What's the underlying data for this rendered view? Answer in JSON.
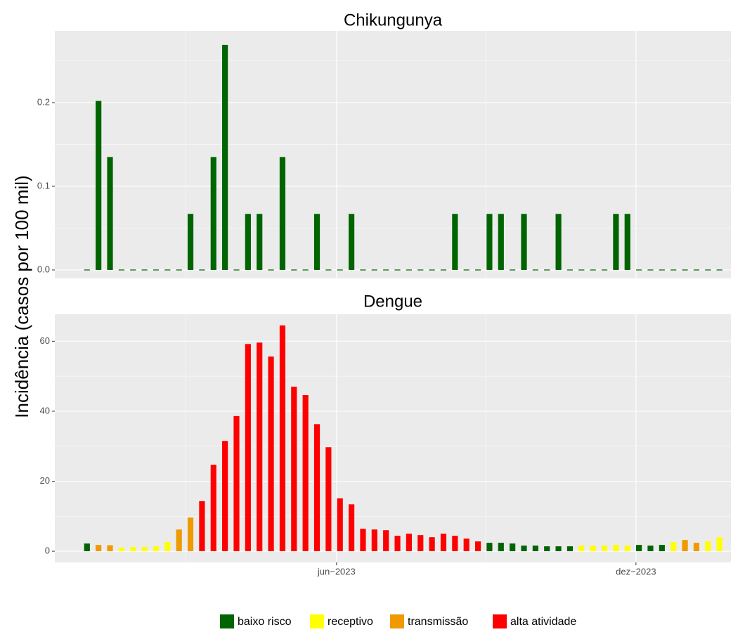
{
  "ylabel": "Incidência (casos por 100 mil)",
  "legend": [
    {
      "name": "baixo risco",
      "color": "#006400"
    },
    {
      "name": "receptivo",
      "color": "#FFFF00"
    },
    {
      "name": "transmissão",
      "color": "#EE9A00"
    },
    {
      "name": "alta atividade",
      "color": "#FF0000"
    }
  ],
  "chart_data": [
    {
      "type": "bar",
      "title": "Chikungunya",
      "x": [
        1,
        2,
        3,
        4,
        5,
        6,
        7,
        8,
        9,
        10,
        11,
        12,
        13,
        14,
        15,
        16,
        17,
        18,
        19,
        20,
        21,
        22,
        23,
        24,
        25,
        26,
        27,
        28,
        29,
        30,
        31,
        32,
        33,
        34,
        35,
        36,
        37,
        38,
        39,
        40,
        41,
        42,
        43,
        44,
        45,
        46,
        47,
        48,
        49,
        50,
        51,
        52,
        53,
        54,
        55,
        56
      ],
      "values": [
        0,
        0.202,
        0.135,
        0,
        0,
        0,
        0,
        0,
        0,
        0.067,
        0,
        0.135,
        0.269,
        0,
        0.067,
        0.067,
        0,
        0.135,
        0,
        0,
        0.067,
        0,
        0,
        0.067,
        0,
        0,
        0,
        0,
        0,
        0,
        0,
        0,
        0.067,
        0,
        0,
        0.067,
        0.067,
        0,
        0.067,
        0,
        0,
        0.067,
        0,
        0,
        0,
        0,
        0.067,
        0.067,
        0,
        0,
        0,
        0,
        0,
        0,
        0,
        0
      ],
      "levels": [
        0,
        0,
        0,
        0,
        0,
        0,
        0,
        0,
        0,
        0,
        0,
        0,
        0,
        0,
        0,
        0,
        0,
        0,
        0,
        0,
        0,
        0,
        0,
        0,
        0,
        0,
        0,
        0,
        0,
        0,
        0,
        0,
        0,
        0,
        0,
        0,
        0,
        0,
        0,
        0,
        0,
        0,
        0,
        0,
        0,
        0,
        0,
        0,
        0,
        0,
        0,
        0,
        0,
        0,
        0,
        0
      ],
      "xlim": [
        -1.8,
        57
      ],
      "xticks": [
        {
          "value": 22.7,
          "label": "jun−2023"
        },
        {
          "value": 48.74,
          "label": "dez−2023"
        }
      ],
      "xminorticks": [
        9.6,
        35.7
      ],
      "ylim": [
        -0.0101,
        0.2857
      ],
      "yticks": [
        {
          "value": 0,
          "label": "0.0"
        },
        {
          "value": 0.1,
          "label": "0.1"
        },
        {
          "value": 0.2,
          "label": "0.2"
        }
      ],
      "yminorticks": [
        0.05,
        0.15,
        0.25
      ],
      "grid": true
    },
    {
      "type": "bar",
      "title": "Dengue",
      "x": [
        1,
        2,
        3,
        4,
        5,
        6,
        7,
        8,
        9,
        10,
        11,
        12,
        13,
        14,
        15,
        16,
        17,
        18,
        19,
        20,
        21,
        22,
        23,
        24,
        25,
        26,
        27,
        28,
        29,
        30,
        31,
        32,
        33,
        34,
        35,
        36,
        37,
        38,
        39,
        40,
        41,
        42,
        43,
        44,
        45,
        46,
        47,
        48,
        49,
        50,
        51,
        52,
        53,
        54,
        55,
        56
      ],
      "values": [
        2.2,
        1.8,
        1.7,
        1.0,
        1.2,
        1.2,
        1.4,
        2.6,
        6.2,
        9.6,
        14.3,
        24.7,
        31.5,
        38.6,
        59.2,
        59.6,
        55.6,
        64.5,
        47,
        44.6,
        36.3,
        29.7,
        15.1,
        13.4,
        6.4,
        6.2,
        6.0,
        4.4,
        5.0,
        4.6,
        4.0,
        5.0,
        4.4,
        3.6,
        2.8,
        2.4,
        2.4,
        2.2,
        1.6,
        1.6,
        1.4,
        1.4,
        1.4,
        1.6,
        1.6,
        1.6,
        1.8,
        1.6,
        1.8,
        1.6,
        1.8,
        2.6,
        3.2,
        2.4,
        2.8,
        4.0
      ],
      "levels": [
        0,
        2,
        2,
        1,
        1,
        1,
        1,
        1,
        2,
        2,
        3,
        3,
        3,
        3,
        3,
        3,
        3,
        3,
        3,
        3,
        3,
        3,
        3,
        3,
        3,
        3,
        3,
        3,
        3,
        3,
        3,
        3,
        3,
        3,
        3,
        0,
        0,
        0,
        0,
        0,
        0,
        0,
        0,
        1,
        1,
        1,
        1,
        1,
        0,
        0,
        0,
        1,
        2,
        2,
        1,
        1
      ],
      "xlim": [
        -1.8,
        57
      ],
      "xticks": [
        {
          "value": 22.7,
          "label": "jun−2023"
        },
        {
          "value": 48.74,
          "label": "dez−2023"
        }
      ],
      "xminorticks": [
        9.6,
        35.7
      ],
      "ylim": [
        -3.2,
        67.7
      ],
      "yticks": [
        0,
        20,
        40,
        60
      ],
      "yminorticks": [
        10,
        30,
        50
      ],
      "grid": true
    }
  ]
}
